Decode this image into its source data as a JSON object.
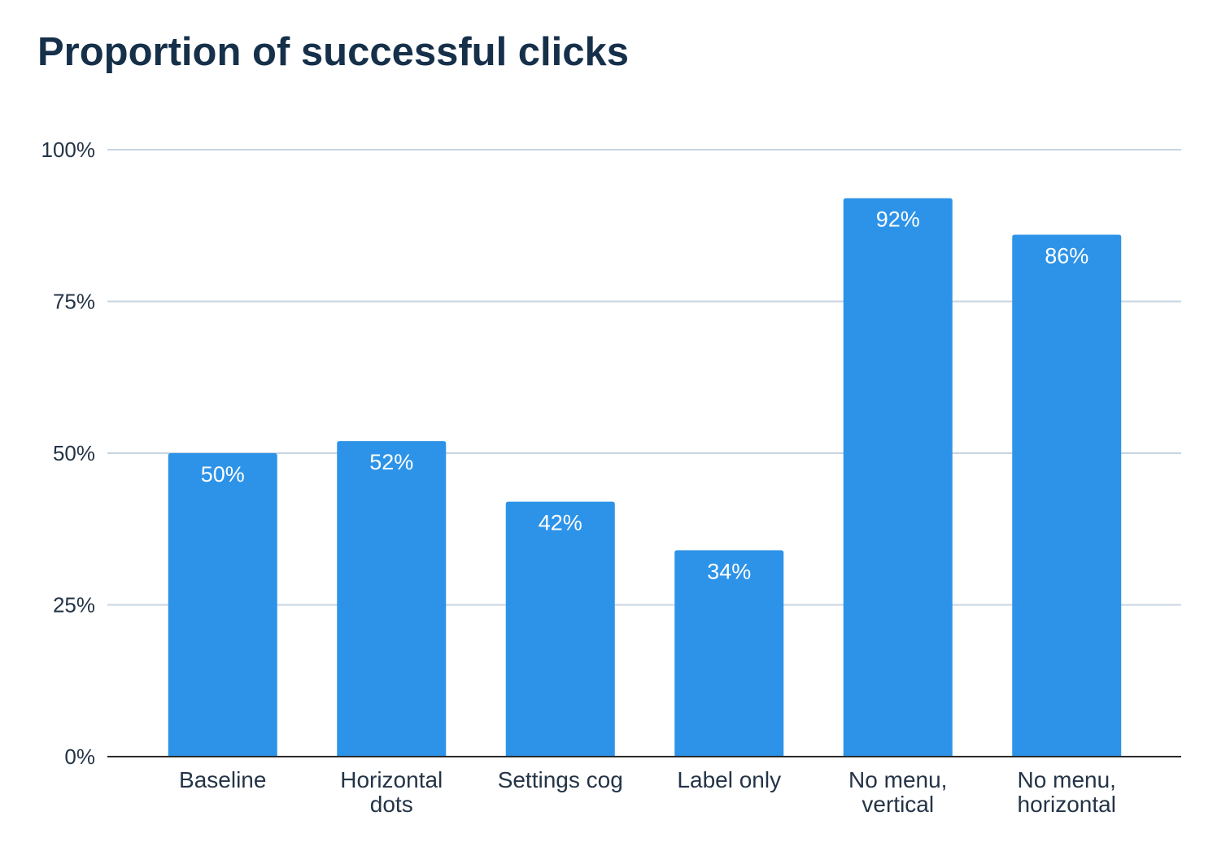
{
  "chart_data": {
    "type": "bar",
    "title": "Proportion of successful clicks",
    "categories": [
      [
        "Baseline"
      ],
      [
        "Horizontal",
        "dots"
      ],
      [
        "Settings cog"
      ],
      [
        "Label only"
      ],
      [
        "No menu,",
        "vertical"
      ],
      [
        "No menu,",
        "horizontal"
      ]
    ],
    "values": [
      50,
      52,
      42,
      34,
      92,
      86
    ],
    "data_labels": [
      "50%",
      "52%",
      "42%",
      "34%",
      "92%",
      "86%"
    ],
    "y_ticks": [
      0,
      25,
      50,
      75,
      100
    ],
    "y_tick_labels": [
      "0%",
      "25%",
      "50%",
      "75%",
      "100%"
    ],
    "ylim": [
      0,
      100
    ],
    "xlabel": "",
    "ylabel": "",
    "grid": true,
    "legend": "none",
    "colors": {
      "bar": "#2d93e8",
      "grid": "#c7d5e2",
      "axis": "#2a2a2a",
      "title": "#16304a",
      "text": "#243447"
    }
  }
}
